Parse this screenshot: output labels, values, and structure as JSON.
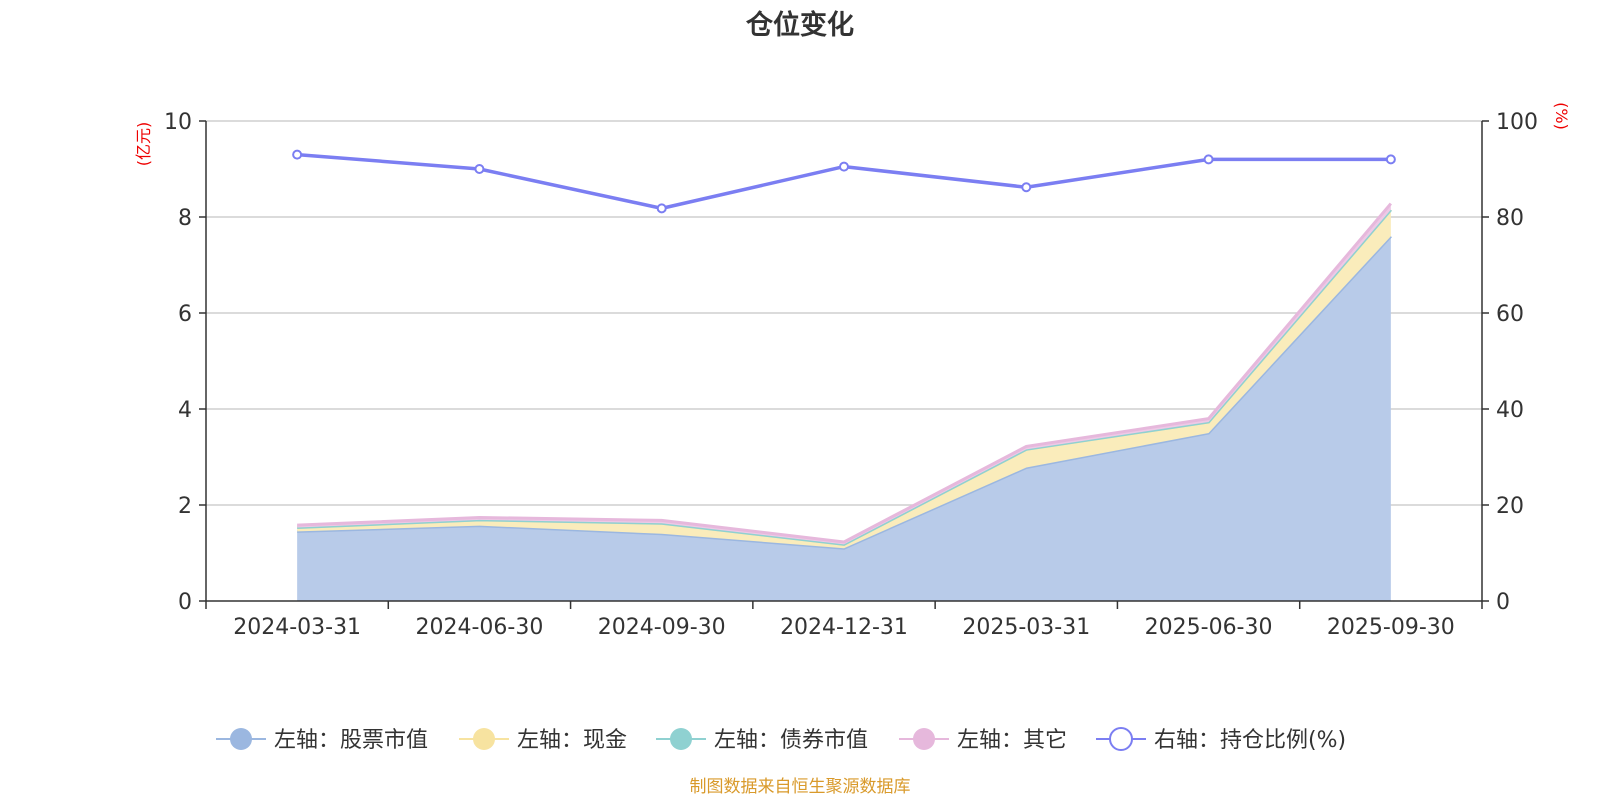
{
  "chart_data": {
    "type": "area",
    "title": "仓位变化",
    "left_unit": "(亿元)",
    "right_unit": "(%)",
    "categories": [
      "2024-03-31",
      "2024-06-30",
      "2024-09-30",
      "2024-12-31",
      "2025-03-31",
      "2025-06-30",
      "2025-09-30"
    ],
    "left_axis": {
      "min": 0,
      "max": 10,
      "ticks": [
        "0",
        "2",
        "4",
        "6",
        "8",
        "10"
      ]
    },
    "right_axis": {
      "min": 0,
      "max": 100,
      "ticks": [
        "0",
        "20",
        "40",
        "60",
        "80",
        "100"
      ]
    },
    "stacked_series": [
      {
        "name": "左轴：股票市值",
        "color": "#9bb7e0",
        "fill": "#b8cbe9",
        "values": [
          1.45,
          1.57,
          1.4,
          1.1,
          2.78,
          3.5,
          7.6
        ]
      },
      {
        "name": "左轴：现金",
        "color": "#f7e3a0",
        "fill": "#faecbb",
        "values": [
          0.08,
          0.12,
          0.22,
          0.08,
          0.38,
          0.23,
          0.55
        ]
      },
      {
        "name": "左轴：债券市值",
        "color": "#8fd1d1",
        "fill": "#a7dcdc",
        "values": [
          0.0,
          0.0,
          0.0,
          0.0,
          0.0,
          0.0,
          0.0
        ]
      },
      {
        "name": "左轴：其它",
        "color": "#e6b8dc",
        "fill": "#eec9e6",
        "values": [
          0.05,
          0.05,
          0.06,
          0.05,
          0.06,
          0.07,
          0.13
        ]
      }
    ],
    "line_series": {
      "name": "右轴：持仓比例(%)",
      "color": "#7b7ef2",
      "values": [
        93.0,
        90.0,
        81.8,
        90.5,
        86.2,
        92.0,
        92.0
      ]
    },
    "grid": true,
    "legend_position": "bottom",
    "source": "制图数据来自恒生聚源数据库"
  }
}
